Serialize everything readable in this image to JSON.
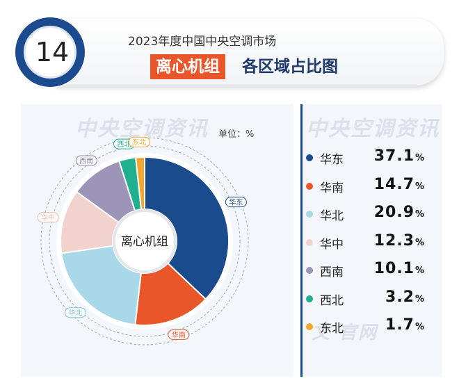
{
  "header": {
    "number": "14",
    "subtitle": "2023年度中国中央空调市场",
    "title_highlight": "离心机组",
    "title_rest": "各区域占比图"
  },
  "chart": {
    "unit_label": "单位：%",
    "watermark": "中央空调资讯",
    "bottom_watermark": "文 官网"
  },
  "chart_data": {
    "type": "pie",
    "center_label": "离心机组",
    "categories": [
      "华东",
      "华南",
      "华北",
      "华中",
      "西南",
      "西北",
      "东北"
    ],
    "values": [
      37.1,
      14.7,
      20.9,
      12.3,
      10.1,
      3.2,
      1.7
    ],
    "colors": [
      "#1a4b8c",
      "#e8562a",
      "#a9d8e8",
      "#f2d2cc",
      "#9d95b8",
      "#1fb08f",
      "#f2a731"
    ],
    "label_colors": [
      "#1a4b8c",
      "#e8562a",
      "#7fc3dc",
      "#f0b9ae",
      "#8b82ad",
      "#1fb08f",
      "#f2a731"
    ],
    "legend_values": [
      "37.1",
      "14.7",
      "20.9",
      "12.3",
      "10.1",
      "3.2",
      "1.7"
    ],
    "percent_sign": "%"
  }
}
